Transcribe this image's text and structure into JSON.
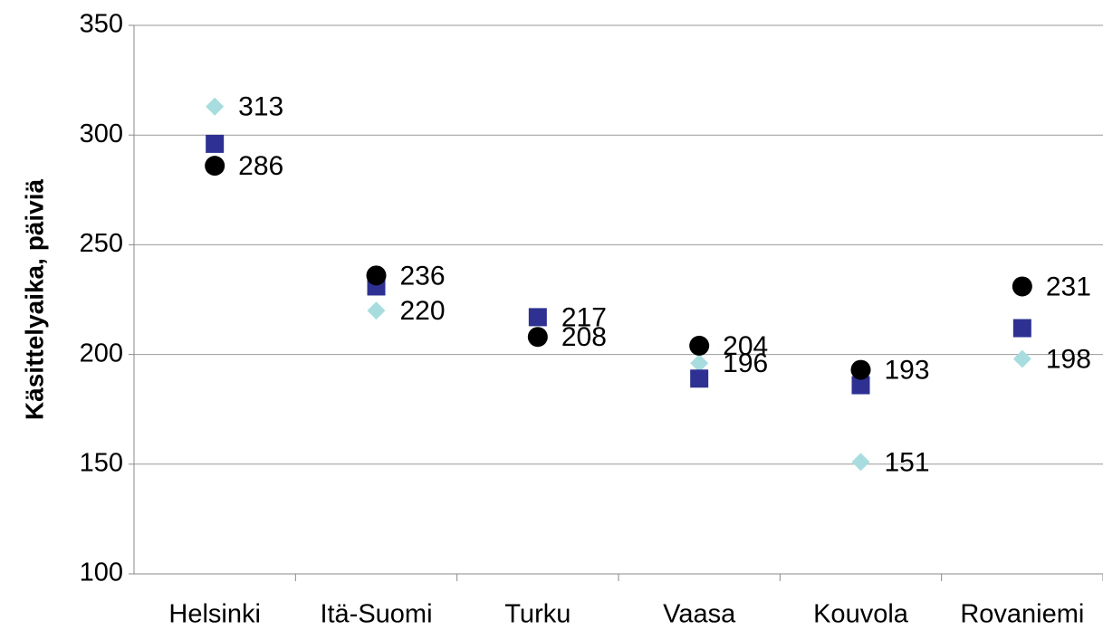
{
  "chart_data": {
    "type": "dot",
    "y_label": "Käsittelyaika, päiviä",
    "categories": [
      "Helsinki",
      "Itä-Suomi",
      "Turku",
      "Vaasa",
      "Kouvola",
      "Rovaniemi"
    ],
    "series": [
      {
        "color": "#a8dde0",
        "marker": "diamond",
        "data_labels": true,
        "values": [
          313,
          220,
          217,
          196,
          151,
          198
        ]
      },
      {
        "color": "#2e3192",
        "marker": "square",
        "data_labels": false,
        "values": [
          296,
          231,
          217,
          189,
          186,
          212
        ]
      },
      {
        "color": "#000000",
        "marker": "circle",
        "data_labels": true,
        "values": [
          286,
          236,
          208,
          204,
          193,
          231
        ]
      }
    ],
    "ylim": [
      100,
      350
    ],
    "yticks": [
      100,
      150,
      200,
      250,
      300,
      350
    ],
    "grid": true
  }
}
